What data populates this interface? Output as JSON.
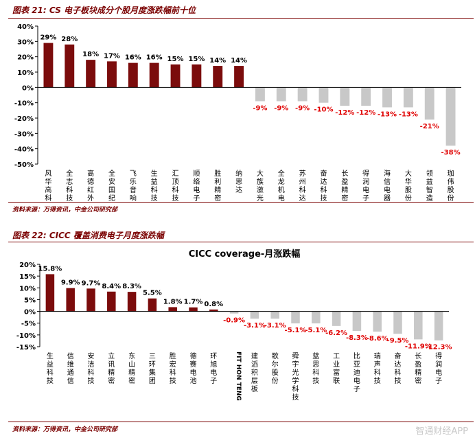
{
  "figures": [
    {
      "title": "图表 21: CS 电子板块成分个股月度涨跌幅前十位",
      "source": "资料来源：万得资讯，中金公司研究部"
    },
    {
      "title": "图表 22: CICC 覆盖消费电子月度涨跌幅",
      "source": "资料来源：万得资讯，中金公司研究部"
    }
  ],
  "watermark": "智通财经APP",
  "colors": {
    "positive": "#7b0c0c",
    "negative": "#c8c8c8",
    "negative_label": "#e00000",
    "axis": "#000000"
  },
  "chart_data": [
    {
      "type": "bar",
      "title": "",
      "ylim": [
        -50,
        40
      ],
      "yticks": [
        40,
        30,
        20,
        10,
        0,
        -10,
        -20,
        -30,
        -40,
        -50
      ],
      "tick_suffix": "%",
      "categories": [
        "风华高科",
        "全志科技",
        "高德红外",
        "全安国纪",
        "飞乐音响",
        "生益科技",
        "汇顶科技",
        "顺络电子",
        "胜利精密",
        "纳思达",
        "大族激光",
        "全龙机电",
        "苏州科达",
        "奋达科技",
        "长盈精密",
        "得润电子",
        "海信电器",
        "大华股份",
        "领益智造",
        "珈伟股份"
      ],
      "values": [
        29,
        28,
        18,
        17,
        16,
        16,
        15,
        15,
        14,
        14,
        -9,
        -9,
        -9,
        -10,
        -12,
        -12,
        -13,
        -13,
        -21,
        -38
      ],
      "labels": [
        "29%",
        "28%",
        "18%",
        "17%",
        "16%",
        "16%",
        "15%",
        "15%",
        "14%",
        "14%",
        "-9%",
        "-9%",
        "-9%",
        "-10%",
        "-12%",
        "-12%",
        "-13%",
        "-13%",
        "-21%",
        "-38%"
      ]
    },
    {
      "type": "bar",
      "title": "CICC coverage-月涨跌幅",
      "ylim": [
        -15,
        20
      ],
      "yticks": [
        20,
        15,
        10,
        5,
        0,
        -5,
        -10,
        -15
      ],
      "tick_suffix": "%",
      "categories": [
        "生益科技",
        "信维通信",
        "安洁科技",
        "立讯精密",
        "东山精密",
        "三环集团",
        "胜宏科技",
        "德赛电池",
        "环旭电子",
        "FIT HON TENG",
        "建滔积层板",
        "歌尔股份",
        "舜宇光学科技",
        "蓝思科技",
        "工业富联",
        "比亚迪电子",
        "瑞声科技",
        "奋达科技",
        "长盈精密",
        "得润电子"
      ],
      "values": [
        15.8,
        9.9,
        9.7,
        8.4,
        8.3,
        5.5,
        1.8,
        1.7,
        0.8,
        -0.9,
        -3.1,
        -3.1,
        -5.1,
        -5.1,
        -6.2,
        -8.3,
        -8.6,
        -9.5,
        -11.9,
        -12.3
      ],
      "labels": [
        "15.8%",
        "9.9%",
        "9.7%",
        "8.4%",
        "8.3%",
        "5.5%",
        "1.8%",
        "1.7%",
        "0.8%",
        "-0.9%",
        "-3.1%",
        "-3.1%",
        "-5.1%",
        "-5.1%",
        "-6.2%",
        "-8.3%",
        "-8.6%",
        "-9.5%",
        "-11.9%",
        "-12.3%"
      ]
    }
  ]
}
